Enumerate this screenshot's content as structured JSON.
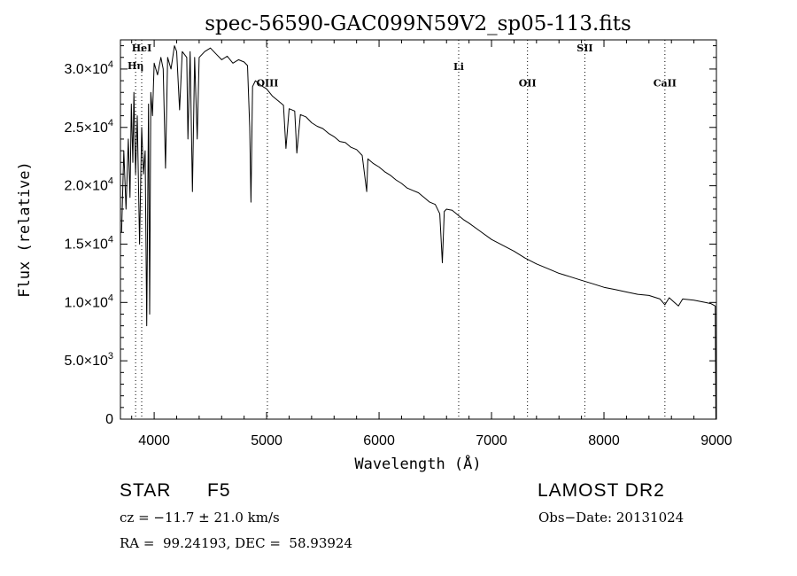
{
  "chart_data": {
    "type": "line",
    "title": "spec-56590-GAC099N59V2_sp05-113.fits",
    "xlabel": "Wavelength (Å)",
    "ylabel": "Flux (relative)",
    "xlim": [
      3700,
      9000
    ],
    "ylim": [
      0,
      32500
    ],
    "x_ticks": [
      4000,
      5000,
      6000,
      7000,
      8000,
      9000
    ],
    "x_tick_labels": [
      "4000",
      "5000",
      "6000",
      "7000",
      "8000",
      "9000"
    ],
    "y_ticks": [
      0,
      5000,
      10000,
      15000,
      20000,
      25000,
      30000
    ],
    "y_tick_labels": [
      {
        "mant": "0",
        "exp": ""
      },
      {
        "mant": "5.0×10",
        "exp": "3"
      },
      {
        "mant": "1.0×10",
        "exp": "4"
      },
      {
        "mant": "1.5×10",
        "exp": "4"
      },
      {
        "mant": "2.0×10",
        "exp": "4"
      },
      {
        "mant": "2.5×10",
        "exp": "4"
      },
      {
        "mant": "3.0×10",
        "exp": "4"
      }
    ],
    "grid": false,
    "line_markers": [
      {
        "label": "HeI",
        "wavelength": 3889,
        "label_flux": 31500
      },
      {
        "label": "Hη",
        "wavelength": 3835,
        "label_flux": 30000
      },
      {
        "label": "OIII",
        "wavelength": 5007,
        "label_flux": 28500
      },
      {
        "label": "Li",
        "wavelength": 6708,
        "label_flux": 29900
      },
      {
        "label": "OII",
        "wavelength": 7320,
        "label_flux": 28500
      },
      {
        "label": "SII",
        "wavelength": 7830,
        "label_flux": 31500
      },
      {
        "label": "CaII",
        "wavelength": 8542,
        "label_flux": 28500
      }
    ],
    "series": [
      {
        "name": "flux",
        "x": [
          3710,
          3730,
          3750,
          3770,
          3785,
          3797,
          3810,
          3820,
          3835,
          3850,
          3870,
          3889,
          3905,
          3920,
          3934,
          3950,
          3960,
          3970,
          3985,
          4000,
          4030,
          4060,
          4080,
          4101,
          4120,
          4150,
          4180,
          4200,
          4226,
          4250,
          4290,
          4300,
          4320,
          4340,
          4360,
          4383,
          4400,
          4450,
          4500,
          4550,
          4600,
          4650,
          4700,
          4750,
          4800,
          4830,
          4850,
          4861,
          4875,
          4900,
          4950,
          5000,
          5050,
          5100,
          5150,
          5172,
          5200,
          5250,
          5269,
          5300,
          5350,
          5400,
          5450,
          5500,
          5550,
          5600,
          5650,
          5700,
          5750,
          5800,
          5850,
          5890,
          5900,
          5950,
          6000,
          6050,
          6100,
          6150,
          6200,
          6250,
          6300,
          6350,
          6400,
          6450,
          6500,
          6540,
          6563,
          6580,
          6600,
          6650,
          6700,
          6750,
          6800,
          6900,
          7000,
          7100,
          7200,
          7300,
          7400,
          7500,
          7600,
          7700,
          7800,
          7900,
          8000,
          8100,
          8200,
          8300,
          8400,
          8498,
          8542,
          8580,
          8662,
          8700,
          8800,
          8900,
          8950,
          8990,
          8995,
          9000
        ],
        "y": [
          16000,
          23000,
          18000,
          24000,
          19000,
          27000,
          22000,
          28000,
          21000,
          26000,
          15000,
          25000,
          21000,
          23000,
          8000,
          27000,
          9000,
          28000,
          26000,
          30500,
          29500,
          31000,
          30000,
          21500,
          31000,
          30000,
          32000,
          31500,
          26500,
          31500,
          31000,
          24000,
          31500,
          19500,
          31000,
          24000,
          31000,
          31500,
          31800,
          31300,
          30800,
          31100,
          30500,
          30800,
          30600,
          30300,
          25000,
          18600,
          28500,
          29000,
          28600,
          28300,
          27700,
          27300,
          26900,
          23200,
          26600,
          26400,
          22800,
          26100,
          25900,
          25400,
          25100,
          24900,
          24500,
          24200,
          23800,
          23700,
          23300,
          23100,
          22600,
          19500,
          22300,
          21900,
          21600,
          21200,
          20900,
          20500,
          20200,
          19800,
          19600,
          19400,
          19000,
          18600,
          18400,
          17600,
          13400,
          17800,
          18000,
          17900,
          17500,
          17100,
          16800,
          16100,
          15400,
          14900,
          14400,
          13800,
          13300,
          12900,
          12500,
          12200,
          11900,
          11600,
          11300,
          11100,
          10900,
          10700,
          10600,
          10300,
          9800,
          10400,
          9700,
          10300,
          10200,
          10000,
          9900,
          9700,
          0,
          0
        ]
      }
    ]
  },
  "info": {
    "object_type": "STAR",
    "spectral_class": "F5",
    "survey": "LAMOST DR2",
    "cz": "cz = −11.7 ± 21.0 km/s",
    "obs_date": "Obs−Date: 20131024",
    "coords": "RA =  99.24193, DEC =  58.93924"
  }
}
